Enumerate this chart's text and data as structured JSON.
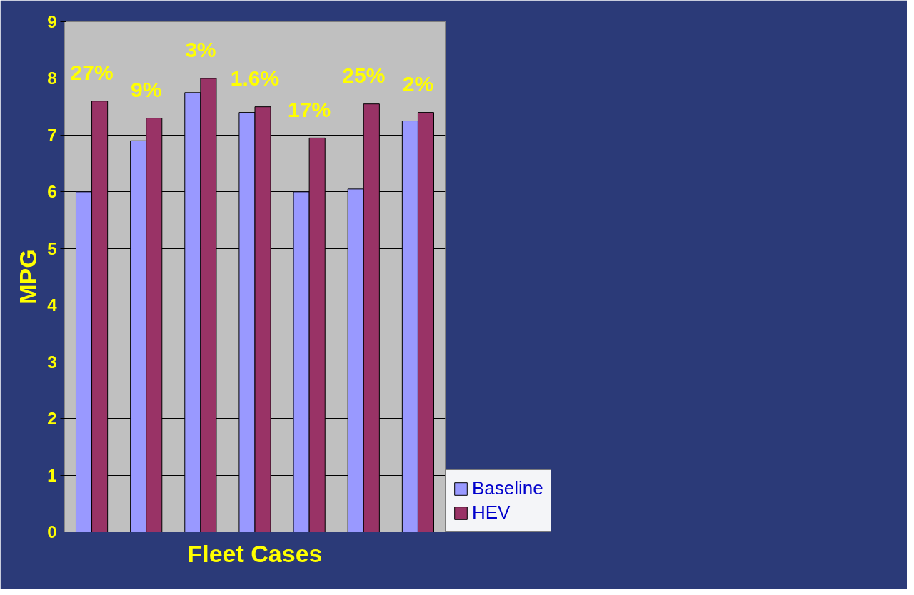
{
  "chart_data": {
    "type": "bar",
    "xlabel": "Fleet Cases",
    "ylabel": "MPG",
    "categories": [
      null,
      null,
      null,
      null,
      null,
      null,
      null
    ],
    "series": [
      {
        "name": "Baseline",
        "color": "#9999ff",
        "values": [
          6.0,
          6.9,
          7.75,
          7.4,
          6.0,
          6.05,
          7.25
        ]
      },
      {
        "name": "HEV",
        "color": "#993366",
        "values": [
          7.6,
          7.3,
          8.0,
          7.5,
          6.95,
          7.55,
          7.4
        ]
      }
    ],
    "ylim": [
      0,
      9
    ],
    "yticks": [
      0,
      1,
      2,
      3,
      4,
      5,
      6,
      7,
      8,
      9
    ],
    "grid": "y",
    "legend": "bottom right",
    "annotations": [
      "27%",
      "9%",
      "3%",
      "1.6%",
      "17%",
      "25%",
      "2%"
    ]
  }
}
